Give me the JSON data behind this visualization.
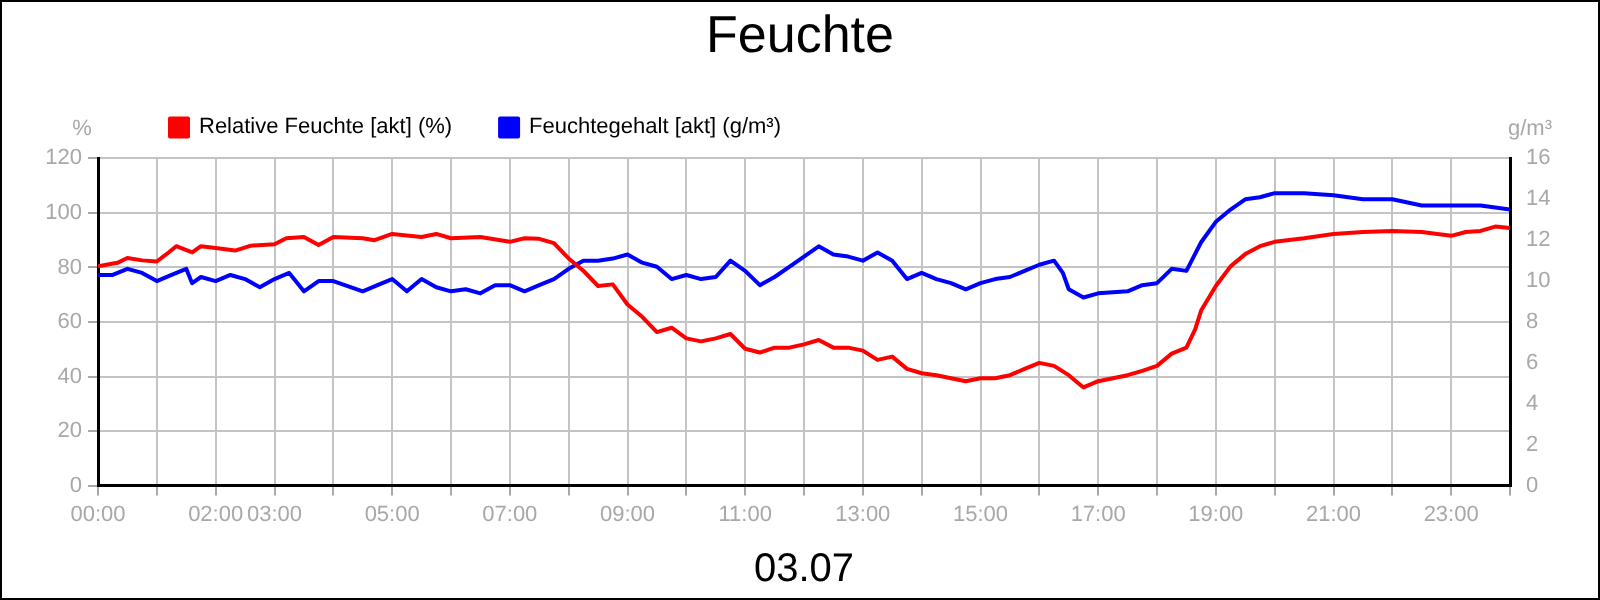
{
  "chart_data": {
    "type": "line",
    "title": "Feuchte",
    "xlabel": "03.07",
    "ylabel": "%",
    "y2label": "g/m³",
    "legend": "top left",
    "grid": true,
    "marker": "none",
    "line_style": "solid",
    "xlim": [
      0,
      24
    ],
    "xticks": [
      {
        "value": 0,
        "label": "00:00"
      },
      {
        "value": 1,
        "label": null
      },
      {
        "value": 2,
        "label": "02:00"
      },
      {
        "value": 3,
        "label": "03:00"
      },
      {
        "value": 4,
        "label": null
      },
      {
        "value": 5,
        "label": "05:00"
      },
      {
        "value": 6,
        "label": null
      },
      {
        "value": 7,
        "label": "07:00"
      },
      {
        "value": 8,
        "label": null
      },
      {
        "value": 9,
        "label": "09:00"
      },
      {
        "value": 10,
        "label": null
      },
      {
        "value": 11,
        "label": "11:00"
      },
      {
        "value": 12,
        "label": null
      },
      {
        "value": 13,
        "label": "13:00"
      },
      {
        "value": 14,
        "label": null
      },
      {
        "value": 15,
        "label": "15:00"
      },
      {
        "value": 16,
        "label": null
      },
      {
        "value": 17,
        "label": "17:00"
      },
      {
        "value": 18,
        "label": null
      },
      {
        "value": 19,
        "label": "19:00"
      },
      {
        "value": 20,
        "label": null
      },
      {
        "value": 21,
        "label": "21:00"
      },
      {
        "value": 22,
        "label": null
      },
      {
        "value": 23,
        "label": "23:00"
      },
      {
        "value": 24,
        "label": null
      }
    ],
    "ylim": [
      0,
      120
    ],
    "yticks": [
      0,
      20,
      40,
      60,
      80,
      100,
      120
    ],
    "y2lim": [
      0,
      16
    ],
    "y2ticks": [
      0,
      2,
      4,
      6,
      8,
      10,
      12,
      14,
      16
    ],
    "series": [
      {
        "name": "Relative Feuchte [akt] (%)",
        "color": "#ff0000",
        "x": [
          0,
          0.33,
          0.5,
          0.75,
          1,
          1.2,
          1.33,
          1.6,
          1.75,
          2,
          2.33,
          2.6,
          3,
          3.2,
          3.5,
          3.75,
          4,
          4.5,
          4.7,
          5,
          5.5,
          5.75,
          6,
          6.5,
          7,
          7.25,
          7.5,
          7.75,
          8,
          8.25,
          8.5,
          8.75,
          9,
          9.25,
          9.5,
          9.75,
          10,
          10.25,
          10.5,
          10.75,
          11,
          11.25,
          11.5,
          11.75,
          12,
          12.25,
          12.5,
          12.75,
          13,
          13.25,
          13.5,
          13.75,
          14,
          14.25,
          14.5,
          14.75,
          15,
          15.25,
          15.5,
          15.75,
          16,
          16.25,
          16.5,
          16.75,
          17,
          17.25,
          17.5,
          17.75,
          18,
          18.25,
          18.5,
          18.65,
          18.75,
          19,
          19.25,
          19.5,
          19.75,
          20,
          20.5,
          21,
          21.5,
          22,
          22.5,
          23,
          23.25,
          23.5,
          23.75,
          24
        ],
        "values": [
          80.4,
          81.7,
          83.5,
          82.6,
          82.2,
          85.5,
          87.8,
          85.5,
          87.8,
          87.1,
          86.2,
          88,
          88.5,
          90.7,
          91.2,
          88.2,
          91.2,
          90.7,
          90,
          92.3,
          91.2,
          92.3,
          90.7,
          91.2,
          89.4,
          90.7,
          90.5,
          88.9,
          83.3,
          78.8,
          73.2,
          73.8,
          66.4,
          61.9,
          56.3,
          57.9,
          54,
          52.9,
          54,
          55.6,
          50.2,
          48.8,
          50.6,
          50.6,
          51.8,
          53.4,
          50.6,
          50.6,
          49.5,
          46.1,
          47.3,
          42.8,
          41.2,
          40.5,
          39.4,
          38.3,
          39.4,
          39.4,
          40.5,
          42.8,
          45,
          43.9,
          40.5,
          36,
          38.3,
          39.4,
          40.5,
          42.1,
          43.9,
          48.4,
          50.6,
          57.4,
          64.2,
          73.2,
          80.4,
          84.9,
          87.8,
          89.4,
          90.7,
          92.3,
          93,
          93.4,
          93,
          91.6,
          93,
          93.4,
          95,
          94.5
        ]
      },
      {
        "name": "Feuchtegehalt [akt] (g/m³)",
        "color": "#0000ff",
        "axis": "y2",
        "x": [
          0,
          0.25,
          0.5,
          0.75,
          1,
          1.25,
          1.5,
          1.6,
          1.75,
          2,
          2.25,
          2.5,
          2.75,
          3,
          3.25,
          3.5,
          3.75,
          4,
          4.5,
          4.75,
          5,
          5.25,
          5.5,
          5.75,
          6,
          6.25,
          6.5,
          6.75,
          7,
          7.25,
          7.5,
          7.75,
          8,
          8.25,
          8.5,
          8.75,
          9,
          9.25,
          9.5,
          9.75,
          10,
          10.25,
          10.5,
          10.75,
          11,
          11.25,
          11.5,
          11.75,
          12,
          12.25,
          12.5,
          12.75,
          13,
          13.25,
          13.5,
          13.75,
          14,
          14.25,
          14.5,
          14.75,
          15,
          15.25,
          15.5,
          15.75,
          16,
          16.25,
          16.4,
          16.5,
          16.75,
          17,
          17.5,
          17.75,
          18,
          18.25,
          18.5,
          18.75,
          19,
          19.25,
          19.5,
          19.75,
          20,
          20.5,
          21,
          21.5,
          22,
          22.5,
          23,
          23.5,
          24
        ],
        "values": [
          10.3,
          10.3,
          10.6,
          10.4,
          10,
          10.3,
          10.6,
          9.9,
          10.2,
          10,
          10.3,
          10.1,
          9.7,
          10.1,
          10.4,
          9.5,
          10,
          10,
          9.5,
          9.8,
          10.1,
          9.5,
          10.1,
          9.7,
          9.5,
          9.6,
          9.4,
          9.8,
          9.8,
          9.5,
          9.8,
          10.1,
          10.6,
          11,
          11,
          11.1,
          11.3,
          10.9,
          10.7,
          10.1,
          10.3,
          10.1,
          10.2,
          11,
          10.5,
          9.8,
          10.2,
          10.7,
          11.2,
          11.7,
          11.3,
          11.2,
          11,
          11.4,
          11,
          10.1,
          10.4,
          10.1,
          9.9,
          9.6,
          9.9,
          10.1,
          10.2,
          10.5,
          10.8,
          11,
          10.4,
          9.6,
          9.2,
          9.4,
          9.5,
          9.8,
          9.9,
          10.6,
          10.5,
          11.9,
          12.9,
          13.5,
          14,
          14.1,
          14.3,
          14.3,
          14.2,
          14,
          14,
          13.7,
          13.7,
          13.7,
          13.5
        ]
      }
    ]
  }
}
